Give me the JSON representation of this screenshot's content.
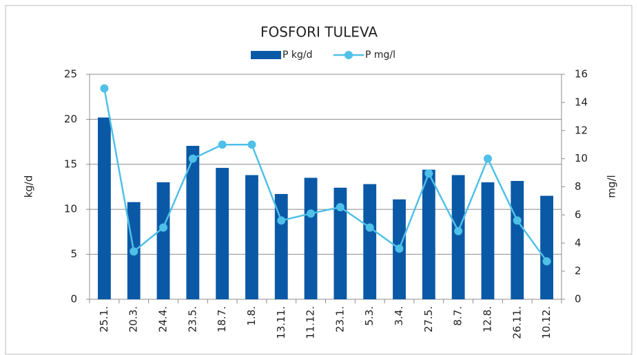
{
  "chart_data": {
    "type": "bar",
    "title": "FOSFORI TULEVA",
    "categories": [
      "25.1.",
      "20.3.",
      "24.4.",
      "23.5.",
      "18.7.",
      "1.8.",
      "13.11.",
      "11.12.",
      "23.1.",
      "5.3.",
      "3.4.",
      "27.5.",
      "8.7.",
      "12.8.",
      "26.11.",
      "10.12."
    ],
    "series": [
      {
        "name": "P kg/d",
        "type": "bar",
        "color": "#0a59a6",
        "values": [
          20.2,
          10.8,
          13.0,
          17.05,
          14.6,
          13.8,
          11.7,
          13.5,
          12.4,
          12.8,
          11.1,
          14.4,
          13.8,
          13.0,
          13.15,
          11.5
        ]
      },
      {
        "name": "P mg/l",
        "type": "line",
        "axis": "y2",
        "color": "#4fc0e8",
        "values": [
          15,
          3.4,
          5.1,
          10.0,
          11.0,
          11.0,
          5.6,
          6.1,
          6.55,
          5.1,
          3.6,
          8.95,
          4.85,
          10.0,
          5.6,
          2.7
        ]
      }
    ],
    "ylabel": "kg/d",
    "y2label": "mg/l",
    "ylim": [
      0,
      25
    ],
    "yticks": [
      0,
      5,
      10,
      15,
      20,
      25
    ],
    "y2lim": [
      0,
      16
    ],
    "y2ticks": [
      0,
      2,
      4,
      6,
      8,
      10,
      12,
      14,
      16
    ],
    "grid": true,
    "legend": "top"
  }
}
